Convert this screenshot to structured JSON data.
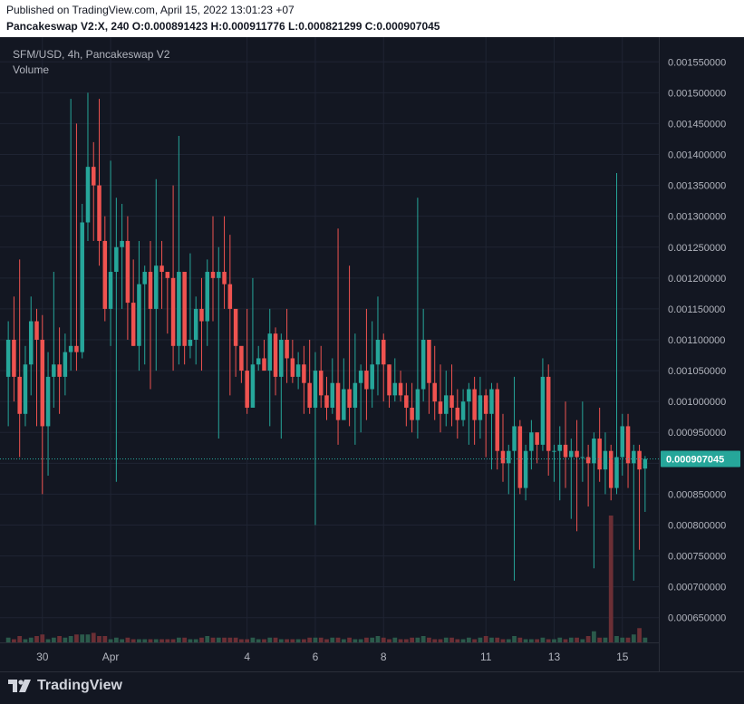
{
  "header": {
    "published": "Published on TradingView.com, April 15, 2022 13:01:23 +07",
    "symbol_line": "Pancakeswap V2:X, 240",
    "ohlc": {
      "o_label": "O:",
      "o_value": "0.000891423",
      "h_label": "H:",
      "h_value": "0.000911776",
      "l_label": "L:",
      "l_value": "0.000821299",
      "c_label": "C:",
      "c_value": "0.000907045"
    }
  },
  "legend": {
    "title": "SFM/USD, 4h, Pancakeswap V2",
    "volume": "Volume"
  },
  "footer": {
    "brand": "TradingView",
    "logo_icon": "tradingview-logo-icon"
  },
  "colors": {
    "background": "#131722",
    "grid": "#1f2433",
    "up": "#26a69a",
    "down": "#ef5350",
    "volume_up": "#2b5a4b",
    "volume_down": "#6b2f35",
    "axis_text": "#b2b5be",
    "price_label_bg": "#26a69a"
  },
  "chart_data": {
    "type": "candlestick",
    "last_price": 0.000907045,
    "last_price_label": "0.000907045",
    "ylim": [
      0.00061,
      0.00159
    ],
    "y_ticks": [
      0.00155,
      0.0015,
      0.00145,
      0.0014,
      0.00135,
      0.0013,
      0.00125,
      0.0012,
      0.00115,
      0.0011,
      0.00105,
      0.001,
      0.00095,
      0.0009,
      0.00085,
      0.0008,
      0.00075,
      0.0007,
      0.00065
    ],
    "y_tick_labels": [
      "0.001550000",
      "0.001500000",
      "0.001450000",
      "0.001400000",
      "0.001350000",
      "0.001300000",
      "0.001250000",
      "0.001200000",
      "0.001150000",
      "0.001100000",
      "0.001050000",
      "0.001000000",
      "0.000950000",
      "0.000900000",
      "0.000850000",
      "0.000800000",
      "0.000750000",
      "0.000700000",
      "0.000650000"
    ],
    "x_ticks": [
      {
        "label": "30",
        "index": 6
      },
      {
        "label": "Apr",
        "index": 18
      },
      {
        "label": "4",
        "index": 42
      },
      {
        "label": "6",
        "index": 54
      },
      {
        "label": "8",
        "index": 66
      },
      {
        "label": "11",
        "index": 84
      },
      {
        "label": "13",
        "index": 96
      },
      {
        "label": "15",
        "index": 108
      }
    ],
    "candles": [
      [
        0.00104,
        0.0011,
        0.00113,
        0.00096,
        3
      ],
      [
        0.0011,
        0.00104,
        0.00117,
        0.001,
        2
      ],
      [
        0.00104,
        0.00098,
        0.00123,
        0.00091,
        4
      ],
      [
        0.00098,
        0.00106,
        0.00109,
        0.00096,
        2
      ],
      [
        0.00106,
        0.00113,
        0.00117,
        0.00101,
        3
      ],
      [
        0.00113,
        0.0011,
        0.00115,
        0.00096,
        4
      ],
      [
        0.0011,
        0.00096,
        0.00114,
        0.00085,
        5
      ],
      [
        0.00096,
        0.00104,
        0.00108,
        0.00088,
        2
      ],
      [
        0.00104,
        0.00106,
        0.00121,
        0.00099,
        3
      ],
      [
        0.00106,
        0.00104,
        0.00112,
        0.00098,
        4
      ],
      [
        0.00104,
        0.00108,
        0.00111,
        0.00101,
        3
      ],
      [
        0.00108,
        0.00109,
        0.00149,
        0.00105,
        4
      ],
      [
        0.00109,
        0.00108,
        0.00145,
        0.00105,
        5
      ],
      [
        0.00108,
        0.00129,
        0.00132,
        0.00107,
        5
      ],
      [
        0.00129,
        0.00138,
        0.0015,
        0.00126,
        5
      ],
      [
        0.00138,
        0.00135,
        0.00142,
        0.00126,
        6
      ],
      [
        0.00135,
        0.00126,
        0.00149,
        0.00122,
        4
      ],
      [
        0.00126,
        0.00115,
        0.0013,
        0.00113,
        4
      ],
      [
        0.00115,
        0.00121,
        0.00139,
        0.00109,
        2
      ],
      [
        0.00121,
        0.00125,
        0.00133,
        0.00087,
        3
      ],
      [
        0.00125,
        0.00126,
        0.00132,
        0.00115,
        2
      ],
      [
        0.00126,
        0.00116,
        0.0013,
        0.0011,
        3
      ],
      [
        0.00116,
        0.00109,
        0.00123,
        0.00109,
        2
      ],
      [
        0.00109,
        0.00119,
        0.00126,
        0.00105,
        2
      ],
      [
        0.00119,
        0.00121,
        0.00122,
        0.00106,
        2
      ],
      [
        0.00121,
        0.00115,
        0.00126,
        0.00102,
        2
      ],
      [
        0.00115,
        0.00122,
        0.00136,
        0.00105,
        2
      ],
      [
        0.00122,
        0.00121,
        0.00126,
        0.00115,
        2
      ],
      [
        0.00121,
        0.0012,
        0.00121,
        0.00111,
        2
      ],
      [
        0.0012,
        0.00109,
        0.00135,
        0.00105,
        2
      ],
      [
        0.00109,
        0.00121,
        0.00143,
        0.00106,
        3
      ],
      [
        0.00121,
        0.00109,
        0.0012,
        0.00106,
        3
      ],
      [
        0.00109,
        0.0011,
        0.00124,
        0.00107,
        2
      ],
      [
        0.0011,
        0.00115,
        0.00117,
        0.00106,
        2
      ],
      [
        0.00115,
        0.00113,
        0.0012,
        0.00105,
        3
      ],
      [
        0.00113,
        0.00121,
        0.00123,
        0.00109,
        4
      ],
      [
        0.00121,
        0.0012,
        0.0013,
        0.00113,
        3
      ],
      [
        0.0012,
        0.00121,
        0.00125,
        0.00094,
        3
      ],
      [
        0.00121,
        0.00119,
        0.0013,
        0.00115,
        3
      ],
      [
        0.00119,
        0.00115,
        0.00127,
        0.00101,
        3
      ],
      [
        0.00115,
        0.00109,
        0.00113,
        0.00104,
        3
      ],
      [
        0.00109,
        0.00105,
        0.00106,
        0.00103,
        2
      ],
      [
        0.00105,
        0.00099,
        0.00115,
        0.00098,
        2
      ],
      [
        0.00099,
        0.00106,
        0.0012,
        0.00099,
        3
      ],
      [
        0.00106,
        0.00107,
        0.00109,
        0.00105,
        2
      ],
      [
        0.00107,
        0.00105,
        0.0011,
        0.00105,
        2
      ],
      [
        0.00105,
        0.00111,
        0.00115,
        0.00096,
        3
      ],
      [
        0.00111,
        0.00104,
        0.00112,
        0.00101,
        3
      ],
      [
        0.00104,
        0.0011,
        0.00111,
        0.00094,
        2
      ],
      [
        0.0011,
        0.00107,
        0.00115,
        0.00103,
        2
      ],
      [
        0.00107,
        0.00104,
        0.0011,
        0.00103,
        2
      ],
      [
        0.00104,
        0.00106,
        0.00108,
        0.00102,
        2
      ],
      [
        0.00106,
        0.00103,
        0.00109,
        0.00098,
        2
      ],
      [
        0.00103,
        0.00099,
        0.0011,
        0.00098,
        3
      ],
      [
        0.00099,
        0.00105,
        0.00108,
        0.0008,
        3
      ],
      [
        0.00105,
        0.00101,
        0.00109,
        0.00099,
        3
      ],
      [
        0.00101,
        0.00099,
        0.00104,
        0.00097,
        2
      ],
      [
        0.00099,
        0.00103,
        0.00107,
        0.00098,
        3
      ],
      [
        0.00103,
        0.00097,
        0.00128,
        0.00093,
        3
      ],
      [
        0.00097,
        0.00102,
        0.00107,
        0.00097,
        2
      ],
      [
        0.00102,
        0.00099,
        0.00122,
        0.00096,
        3
      ],
      [
        0.00099,
        0.00103,
        0.00111,
        0.00093,
        2
      ],
      [
        0.00103,
        0.00105,
        0.00106,
        0.00095,
        2
      ],
      [
        0.00105,
        0.00102,
        0.00115,
        0.00097,
        3
      ],
      [
        0.00102,
        0.00106,
        0.00113,
        0.00099,
        3
      ],
      [
        0.00106,
        0.0011,
        0.00117,
        0.00101,
        4
      ],
      [
        0.0011,
        0.00106,
        0.00111,
        0.001,
        3
      ],
      [
        0.00106,
        0.00101,
        0.00106,
        0.00099,
        2
      ],
      [
        0.00101,
        0.00103,
        0.00107,
        0.001,
        3
      ],
      [
        0.00103,
        0.00101,
        0.00105,
        0.001,
        2
      ],
      [
        0.00101,
        0.00099,
        0.00103,
        0.00096,
        2
      ],
      [
        0.00099,
        0.00097,
        0.00103,
        0.00095,
        3
      ],
      [
        0.00097,
        0.00102,
        0.00133,
        0.00094,
        3
      ],
      [
        0.00102,
        0.0011,
        0.00115,
        0.001,
        4
      ],
      [
        0.0011,
        0.00103,
        0.0011,
        0.00098,
        3
      ],
      [
        0.00103,
        0.001,
        0.00109,
        0.00097,
        2
      ],
      [
        0.001,
        0.00098,
        0.00106,
        0.00095,
        2
      ],
      [
        0.00098,
        0.00101,
        0.00105,
        0.00096,
        3
      ],
      [
        0.00101,
        0.00099,
        0.00106,
        0.00096,
        3
      ],
      [
        0.00099,
        0.00097,
        0.00102,
        0.00094,
        2
      ],
      [
        0.00097,
        0.001,
        0.00102,
        0.00096,
        2
      ],
      [
        0.001,
        0.00102,
        0.00103,
        0.00093,
        3
      ],
      [
        0.00102,
        0.00097,
        0.00104,
        0.00093,
        2
      ],
      [
        0.00097,
        0.00101,
        0.00104,
        0.00094,
        3
      ],
      [
        0.00101,
        0.00098,
        0.00102,
        0.00091,
        4
      ],
      [
        0.00098,
        0.00102,
        0.00103,
        0.00089,
        3
      ],
      [
        0.00102,
        0.00092,
        0.00103,
        0.00089,
        3
      ],
      [
        0.00092,
        0.0009,
        0.00098,
        0.00087,
        2
      ],
      [
        0.0009,
        0.00092,
        0.00093,
        0.00085,
        2
      ],
      [
        0.00092,
        0.00096,
        0.00104,
        0.00071,
        4
      ],
      [
        0.00096,
        0.00086,
        0.00097,
        0.00085,
        3
      ],
      [
        0.00086,
        0.00092,
        0.00093,
        0.00084,
        2
      ],
      [
        0.00092,
        0.00095,
        0.00097,
        0.00089,
        2
      ],
      [
        0.00095,
        0.00093,
        0.00095,
        0.0009,
        2
      ],
      [
        0.00093,
        0.00104,
        0.00107,
        0.00092,
        3
      ],
      [
        0.00104,
        0.00092,
        0.00106,
        0.00088,
        2
      ],
      [
        0.00092,
        0.00092,
        0.00093,
        0.00087,
        2
      ],
      [
        0.00092,
        0.00093,
        0.00096,
        0.00084,
        3
      ],
      [
        0.00093,
        0.00091,
        0.001,
        0.00086,
        2
      ],
      [
        0.00091,
        0.00092,
        0.00094,
        0.00081,
        3
      ],
      [
        0.00092,
        0.00091,
        0.00097,
        0.00079,
        3
      ],
      [
        0.00091,
        0.00091,
        0.001,
        0.00087,
        2
      ],
      [
        0.00091,
        0.0009,
        0.00093,
        0.00083,
        4
      ],
      [
        0.0009,
        0.00094,
        0.00095,
        0.00073,
        7
      ],
      [
        0.00094,
        0.00089,
        0.00099,
        0.00087,
        3
      ],
      [
        0.00089,
        0.00092,
        0.00095,
        0.00085,
        3
      ],
      [
        0.00092,
        0.00086,
        0.00093,
        0.00084,
        80
      ],
      [
        0.00086,
        0.00091,
        0.00137,
        0.00085,
        4
      ],
      [
        0.00091,
        0.00096,
        0.00098,
        0.00088,
        3
      ],
      [
        0.00096,
        0.0009,
        0.00098,
        0.00086,
        3
      ],
      [
        0.0009,
        0.00092,
        0.00093,
        0.00071,
        5
      ],
      [
        0.00092,
        0.00089,
        0.00093,
        0.00076,
        9
      ],
      [
        0.000891423,
        0.000907045,
        0.000911776,
        0.000821299,
        3
      ]
    ]
  }
}
